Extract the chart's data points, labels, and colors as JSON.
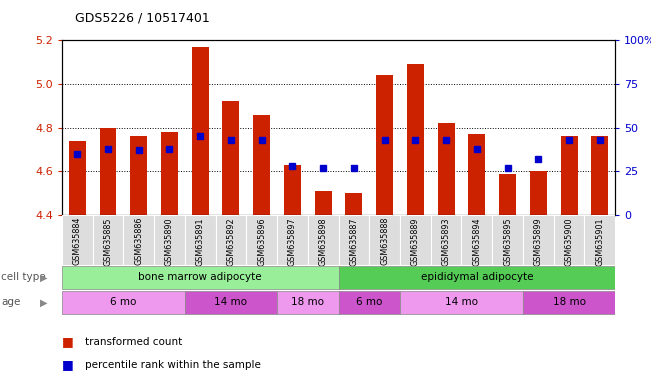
{
  "title": "GDS5226 / 10517401",
  "samples": [
    "GSM635884",
    "GSM635885",
    "GSM635886",
    "GSM635890",
    "GSM635891",
    "GSM635892",
    "GSM635896",
    "GSM635897",
    "GSM635898",
    "GSM635887",
    "GSM635888",
    "GSM635889",
    "GSM635893",
    "GSM635894",
    "GSM635895",
    "GSM635899",
    "GSM635900",
    "GSM635901"
  ],
  "bar_values": [
    4.74,
    4.8,
    4.76,
    4.78,
    5.17,
    4.92,
    4.86,
    4.63,
    4.51,
    4.5,
    5.04,
    5.09,
    4.82,
    4.77,
    4.59,
    4.6,
    4.76,
    4.76
  ],
  "percentile_values": [
    35,
    38,
    37,
    38,
    45,
    43,
    43,
    28,
    27,
    27,
    43,
    43,
    43,
    38,
    27,
    32,
    43,
    43
  ],
  "ylim": [
    4.4,
    5.2
  ],
  "yticks_left": [
    4.4,
    4.6,
    4.8,
    5.0,
    5.2
  ],
  "yticks_right": [
    0,
    25,
    50,
    75,
    100
  ],
  "bar_color": "#cc2200",
  "percentile_color": "#0000cc",
  "bar_bottom": 4.4,
  "cell_type_groups": [
    {
      "label": "bone marrow adipocyte",
      "start": 0,
      "end": 9,
      "color": "#99ee99"
    },
    {
      "label": "epididymal adipocyte",
      "start": 9,
      "end": 18,
      "color": "#55cc55"
    }
  ],
  "age_groups": [
    {
      "label": "6 mo",
      "start": 0,
      "end": 4,
      "color": "#ee99ee"
    },
    {
      "label": "14 mo",
      "start": 4,
      "end": 7,
      "color": "#cc55cc"
    },
    {
      "label": "18 mo",
      "start": 7,
      "end": 9,
      "color": "#ee99ee"
    },
    {
      "label": "6 mo",
      "start": 9,
      "end": 11,
      "color": "#cc55cc"
    },
    {
      "label": "14 mo",
      "start": 11,
      "end": 15,
      "color": "#ee99ee"
    },
    {
      "label": "18 mo",
      "start": 15,
      "end": 18,
      "color": "#cc55cc"
    }
  ],
  "legend_labels": [
    "transformed count",
    "percentile rank within the sample"
  ],
  "legend_colors": [
    "#cc2200",
    "#0000cc"
  ],
  "cell_type_label": "cell type",
  "age_label": "age",
  "bg_color": "#ffffff"
}
